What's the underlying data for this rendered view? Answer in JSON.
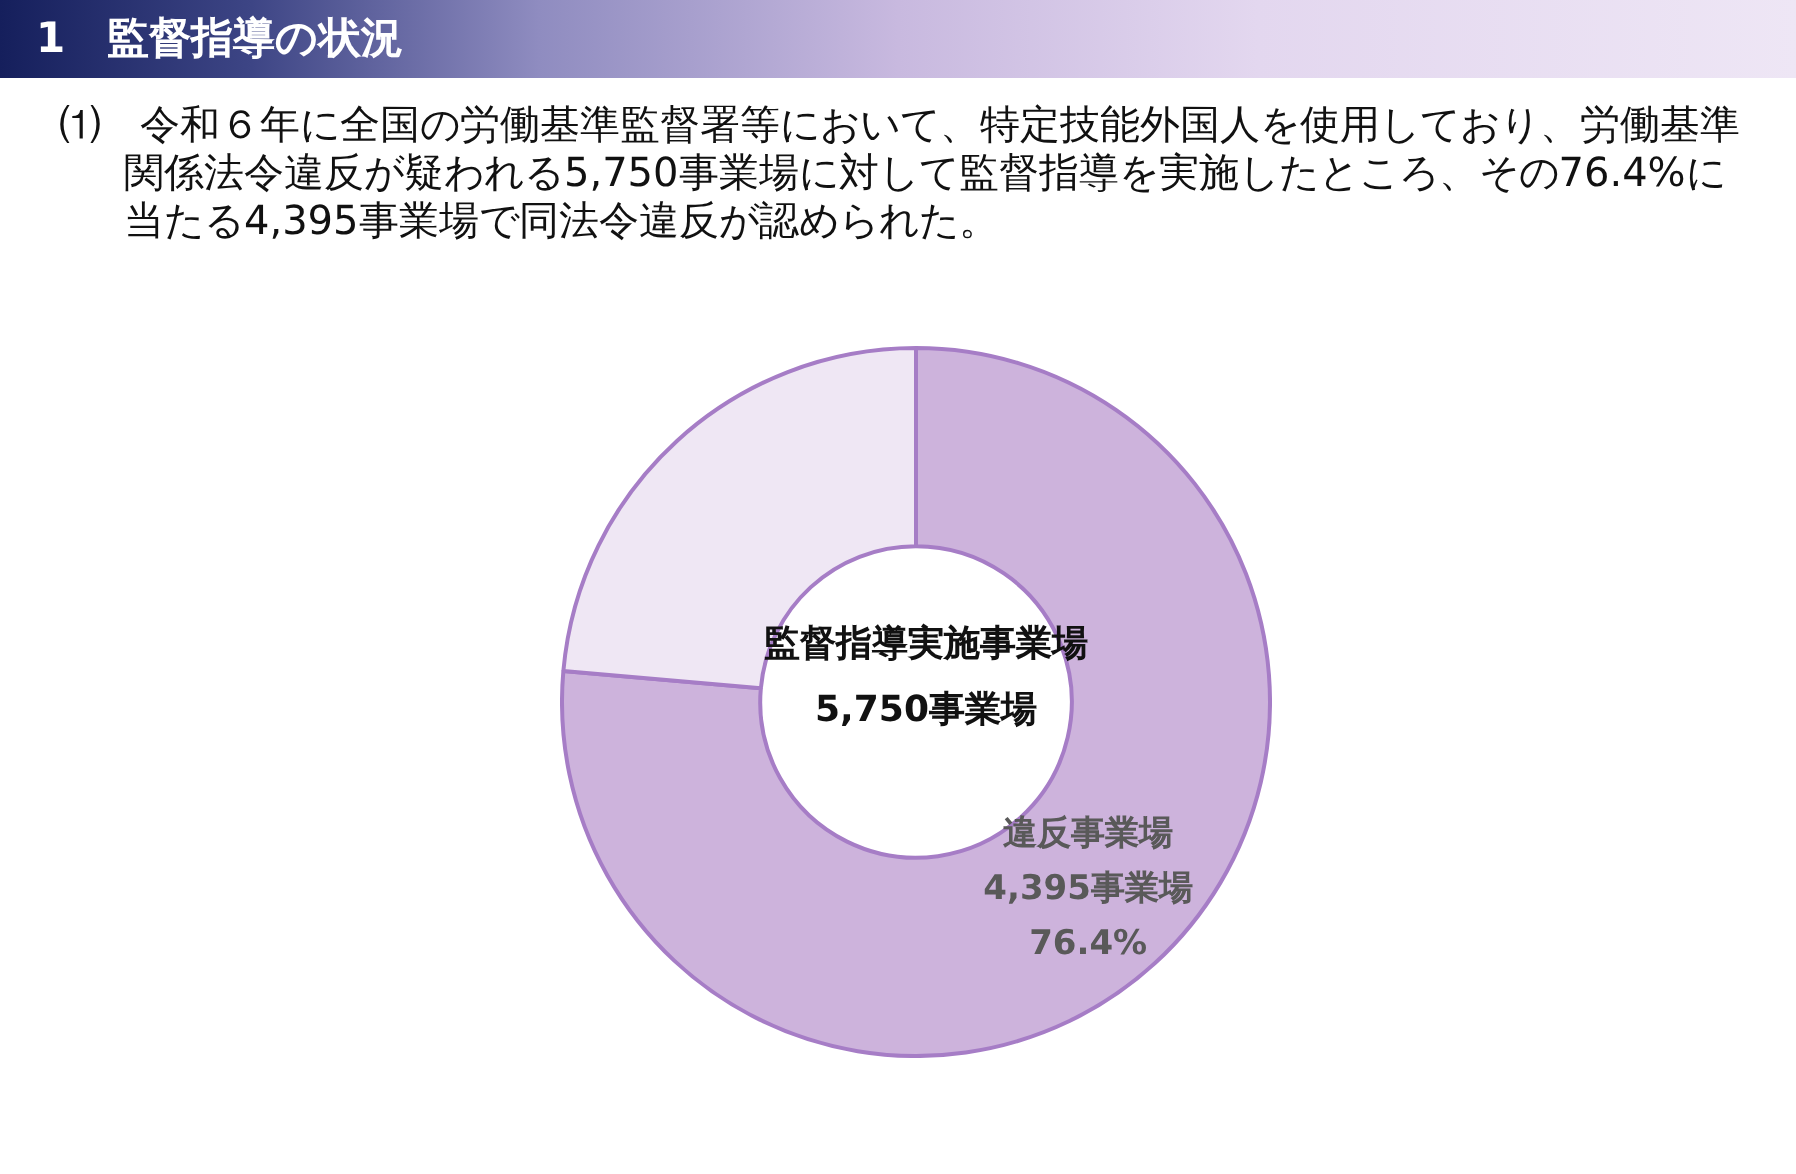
{
  "chart_data": {
    "type": "donut",
    "title": "1　監督指導の状況",
    "subtitle": "⑴　令和６年に全国の労働基準監督署等において、特定技能外国人を使用しており、労働基準関係法令違反が疑われる5,750事業場に対して監督指導を実施したところ、その76.4%に当たる4,395事業場で同法令違反が認められた。",
    "categories": [
      "違反事業場",
      null
    ],
    "values": [
      76.4,
      23.6
    ],
    "colors": [
      "#cdb3dc",
      "#efe7f4"
    ],
    "value_labels": [
      "4,395事業場\n76.4%",
      null
    ],
    "annotations": [
      "監督指導実施事業場",
      "5,750事業場"
    ]
  }
}
